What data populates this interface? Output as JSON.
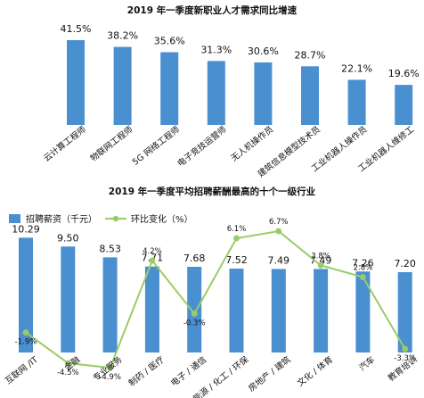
{
  "chart_data": [
    {
      "type": "bar",
      "title": "2019 年一季度新职业人才需求同比增速",
      "categories": [
        "云计算工程师",
        "物联网工程师",
        "5G 网络工程师",
        "电子竞技运营师",
        "无人机操作员",
        "建筑信息模型技术员",
        "工业机器人操作员",
        "工业机器人维修工"
      ],
      "values": [
        41.5,
        38.2,
        35.6,
        31.3,
        30.6,
        28.7,
        22.1,
        19.6
      ],
      "value_labels": [
        "41.5%",
        "38.2%",
        "35.6%",
        "31.3%",
        "30.6%",
        "28.7%",
        "22.1%",
        "19.6%"
      ],
      "ylim": [
        0,
        45
      ],
      "grid": false,
      "colors": {
        "bar": "#4a90d1"
      }
    },
    {
      "type": "bar",
      "title": "2019 年一季度平均招聘薪酬最高的十个一级行业",
      "legend_position": "top-left",
      "categories": [
        "互联网 /IT",
        "金融",
        "专业服务",
        "制药 / 医疗",
        "电子 / 通信",
        "能源 / 化工 / 环保",
        "房地产 / 建筑",
        "文化 / 体育",
        "汽车",
        "教育培训"
      ],
      "series": [
        {
          "name": "招聘薪资（千元）",
          "type": "bar",
          "values": [
            10.29,
            9.5,
            8.53,
            7.71,
            7.68,
            7.52,
            7.49,
            7.49,
            7.26,
            7.2
          ],
          "value_labels": [
            "10.29",
            "9.50",
            "8.53",
            "7.71",
            "7.68",
            "7.52",
            "7.49",
            "7.49",
            "7.26",
            "7.20"
          ],
          "color": "#4a90d1"
        },
        {
          "name": "环比变化（%）",
          "type": "line",
          "values": [
            -1.9,
            -4.5,
            -4.9,
            4.2,
            -0.3,
            6.1,
            6.7,
            3.8,
            2.8,
            -3.3
          ],
          "value_labels": [
            "-1.9%",
            "-4.5%",
            "-4.9%",
            "4.2%",
            "-0.3%",
            "6.1%",
            "6.7%",
            "3.8%",
            "2.8%",
            "-3.3%"
          ],
          "color": "#99cc66"
        }
      ],
      "ylim": [
        0,
        11
      ],
      "y2lim": [
        -6,
        8
      ],
      "grid": false
    }
  ]
}
